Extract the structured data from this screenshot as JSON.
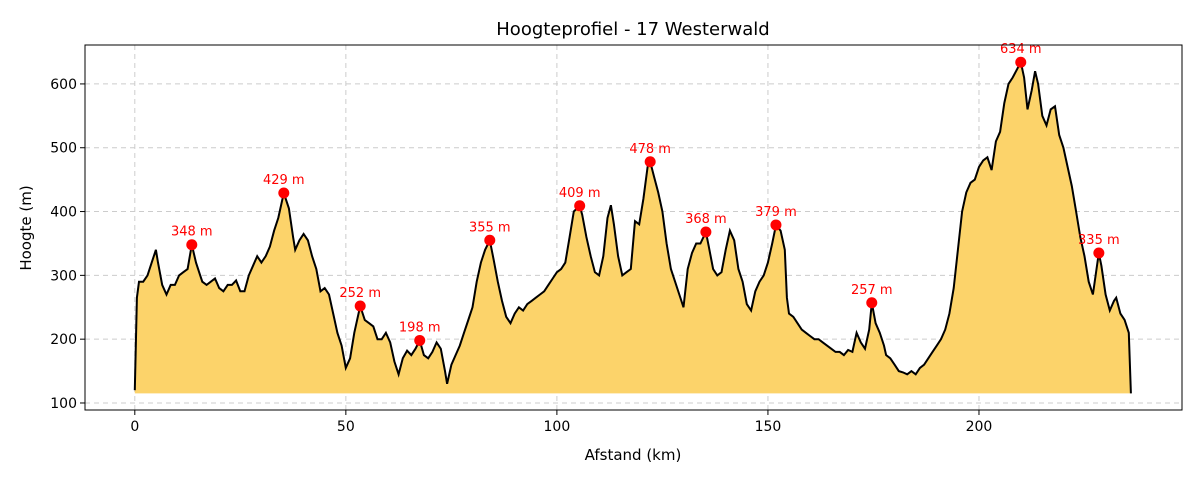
{
  "chart_data": {
    "type": "area",
    "title": "Hoogteprofiel - 17 Westerwald",
    "xlabel": "Afstand (km)",
    "ylabel": "Hoogte (m)",
    "xlim": [
      -11.8,
      248.1
    ],
    "ylim": [
      89,
      661
    ],
    "fill_base": 115,
    "xticks": [
      0,
      50,
      100,
      150,
      200
    ],
    "yticks": [
      100,
      200,
      300,
      400,
      500,
      600
    ],
    "grid": true,
    "colors": {
      "line": "#000000",
      "fill": "#fcd36a",
      "peaks": "#ff0000"
    },
    "profile": [
      [
        0,
        120
      ],
      [
        0.5,
        265
      ],
      [
        1,
        290
      ],
      [
        2,
        290
      ],
      [
        3,
        300
      ],
      [
        4,
        320
      ],
      [
        5,
        340
      ],
      [
        5.5,
        320
      ],
      [
        6.5,
        285
      ],
      [
        7.5,
        270
      ],
      [
        8.5,
        285
      ],
      [
        9.5,
        285
      ],
      [
        10.5,
        300
      ],
      [
        11.5,
        305
      ],
      [
        12.5,
        310
      ],
      [
        13.5,
        348
      ],
      [
        14.5,
        320
      ],
      [
        15.5,
        300
      ],
      [
        16,
        290
      ],
      [
        17,
        285
      ],
      [
        18,
        290
      ],
      [
        19,
        295
      ],
      [
        20,
        280
      ],
      [
        21,
        275
      ],
      [
        22,
        285
      ],
      [
        23,
        285
      ],
      [
        24,
        292
      ],
      [
        25,
        275
      ],
      [
        26,
        275
      ],
      [
        27,
        300
      ],
      [
        28,
        315
      ],
      [
        29,
        330
      ],
      [
        30,
        320
      ],
      [
        31,
        330
      ],
      [
        32,
        345
      ],
      [
        33,
        370
      ],
      [
        34,
        390
      ],
      [
        35.3,
        429
      ],
      [
        36.5,
        405
      ],
      [
        37.5,
        360
      ],
      [
        38,
        340
      ],
      [
        39,
        355
      ],
      [
        40,
        365
      ],
      [
        41,
        355
      ],
      [
        42,
        330
      ],
      [
        43,
        310
      ],
      [
        44,
        275
      ],
      [
        45,
        280
      ],
      [
        46,
        270
      ],
      [
        47,
        240
      ],
      [
        48,
        210
      ],
      [
        49,
        190
      ],
      [
        50,
        155
      ],
      [
        51,
        170
      ],
      [
        52,
        210
      ],
      [
        53.4,
        252
      ],
      [
        54.5,
        230
      ],
      [
        55.5,
        225
      ],
      [
        56.5,
        220
      ],
      [
        57.5,
        200
      ],
      [
        58.5,
        200
      ],
      [
        59.5,
        210
      ],
      [
        60.5,
        195
      ],
      [
        61.5,
        165
      ],
      [
        62.5,
        145
      ],
      [
        63.5,
        170
      ],
      [
        64.5,
        182
      ],
      [
        65.5,
        175
      ],
      [
        66.5,
        185
      ],
      [
        67.5,
        198
      ],
      [
        68.5,
        175
      ],
      [
        69.5,
        170
      ],
      [
        70.5,
        180
      ],
      [
        71.5,
        195
      ],
      [
        72.5,
        185
      ],
      [
        73.5,
        150
      ],
      [
        74,
        130
      ],
      [
        75,
        160
      ],
      [
        76,
        175
      ],
      [
        77,
        190
      ],
      [
        78,
        210
      ],
      [
        79,
        230
      ],
      [
        80,
        250
      ],
      [
        81,
        290
      ],
      [
        82,
        320
      ],
      [
        83,
        340
      ],
      [
        84.1,
        355
      ],
      [
        85,
        325
      ],
      [
        86,
        290
      ],
      [
        87,
        260
      ],
      [
        88,
        235
      ],
      [
        89,
        225
      ],
      [
        90,
        240
      ],
      [
        91,
        250
      ],
      [
        92,
        245
      ],
      [
        93,
        255
      ],
      [
        94,
        260
      ],
      [
        95,
        265
      ],
      [
        96,
        270
      ],
      [
        97,
        275
      ],
      [
        98,
        285
      ],
      [
        99,
        295
      ],
      [
        100,
        305
      ],
      [
        101,
        310
      ],
      [
        102,
        320
      ],
      [
        103,
        360
      ],
      [
        104,
        400
      ],
      [
        105.4,
        409
      ],
      [
        106,
        395
      ],
      [
        107,
        360
      ],
      [
        108,
        330
      ],
      [
        109,
        305
      ],
      [
        110,
        300
      ],
      [
        111,
        330
      ],
      [
        112,
        390
      ],
      [
        112.8,
        410
      ],
      [
        113.5,
        380
      ],
      [
        114.5,
        330
      ],
      [
        115.5,
        300
      ],
      [
        116.5,
        305
      ],
      [
        117.5,
        310
      ],
      [
        118.5,
        385
      ],
      [
        119.5,
        380
      ],
      [
        120.5,
        420
      ],
      [
        121.5,
        470
      ],
      [
        122.1,
        478
      ],
      [
        123,
        455
      ],
      [
        124,
        430
      ],
      [
        125,
        400
      ],
      [
        126,
        350
      ],
      [
        127,
        310
      ],
      [
        128,
        290
      ],
      [
        129,
        270
      ],
      [
        130,
        250
      ],
      [
        131,
        310
      ],
      [
        132,
        335
      ],
      [
        133,
        350
      ],
      [
        134,
        350
      ],
      [
        135.3,
        368
      ],
      [
        136,
        345
      ],
      [
        137,
        310
      ],
      [
        138,
        300
      ],
      [
        139,
        305
      ],
      [
        140,
        340
      ],
      [
        141,
        370
      ],
      [
        142,
        355
      ],
      [
        143,
        310
      ],
      [
        144,
        290
      ],
      [
        145,
        255
      ],
      [
        146,
        245
      ],
      [
        147,
        275
      ],
      [
        148,
        290
      ],
      [
        149,
        300
      ],
      [
        150,
        320
      ],
      [
        151,
        350
      ],
      [
        151.9,
        379
      ],
      [
        153,
        370
      ],
      [
        154,
        340
      ],
      [
        154.5,
        265
      ],
      [
        155,
        240
      ],
      [
        156,
        235
      ],
      [
        157,
        225
      ],
      [
        158,
        215
      ],
      [
        159,
        210
      ],
      [
        160,
        205
      ],
      [
        161,
        200
      ],
      [
        162,
        200
      ],
      [
        163,
        195
      ],
      [
        164,
        190
      ],
      [
        165,
        185
      ],
      [
        166,
        180
      ],
      [
        167,
        180
      ],
      [
        168,
        175
      ],
      [
        169,
        183
      ],
      [
        170,
        180
      ],
      [
        171,
        210
      ],
      [
        172,
        195
      ],
      [
        173,
        185
      ],
      [
        174,
        215
      ],
      [
        174.6,
        257
      ],
      [
        175.5,
        225
      ],
      [
        176.5,
        210
      ],
      [
        177.5,
        190
      ],
      [
        178,
        175
      ],
      [
        179,
        170
      ],
      [
        180,
        160
      ],
      [
        181,
        150
      ],
      [
        182,
        148
      ],
      [
        183,
        145
      ],
      [
        184,
        150
      ],
      [
        185,
        145
      ],
      [
        186,
        155
      ],
      [
        187,
        160
      ],
      [
        188,
        170
      ],
      [
        189,
        180
      ],
      [
        190,
        190
      ],
      [
        191,
        200
      ],
      [
        192,
        215
      ],
      [
        193,
        240
      ],
      [
        194,
        280
      ],
      [
        195,
        340
      ],
      [
        196,
        400
      ],
      [
        197,
        430
      ],
      [
        198,
        445
      ],
      [
        199,
        450
      ],
      [
        200,
        470
      ],
      [
        201,
        480
      ],
      [
        202,
        485
      ],
      [
        203,
        465
      ],
      [
        204,
        510
      ],
      [
        205,
        525
      ],
      [
        206,
        570
      ],
      [
        207,
        600
      ],
      [
        208,
        610
      ],
      [
        209.9,
        634
      ],
      [
        210.7,
        610
      ],
      [
        211.5,
        560
      ],
      [
        212.5,
        590
      ],
      [
        213.3,
        620
      ],
      [
        214,
        600
      ],
      [
        215,
        550
      ],
      [
        216,
        535
      ],
      [
        217,
        560
      ],
      [
        218,
        565
      ],
      [
        219,
        520
      ],
      [
        220,
        500
      ],
      [
        221,
        470
      ],
      [
        222,
        440
      ],
      [
        223,
        400
      ],
      [
        224,
        360
      ],
      [
        225,
        330
      ],
      [
        226,
        290
      ],
      [
        227,
        270
      ],
      [
        228.4,
        335
      ],
      [
        229,
        315
      ],
      [
        230,
        270
      ],
      [
        231,
        245
      ],
      [
        232,
        260
      ],
      [
        232.5,
        265
      ],
      [
        233.5,
        240
      ],
      [
        234.5,
        230
      ],
      [
        235.5,
        210
      ],
      [
        236,
        115
      ]
    ],
    "peaks": [
      {
        "x": 13.5,
        "y": 348,
        "label": "348 m"
      },
      {
        "x": 35.3,
        "y": 429,
        "label": "429 m"
      },
      {
        "x": 53.4,
        "y": 252,
        "label": "252 m"
      },
      {
        "x": 67.5,
        "y": 198,
        "label": "198 m"
      },
      {
        "x": 84.1,
        "y": 355,
        "label": "355 m"
      },
      {
        "x": 105.4,
        "y": 409,
        "label": "409 m"
      },
      {
        "x": 122.1,
        "y": 478,
        "label": "478 m"
      },
      {
        "x": 135.3,
        "y": 368,
        "label": "368 m"
      },
      {
        "x": 151.9,
        "y": 379,
        "label": "379 m"
      },
      {
        "x": 174.6,
        "y": 257,
        "label": "257 m"
      },
      {
        "x": 209.9,
        "y": 634,
        "label": "634 m"
      },
      {
        "x": 228.4,
        "y": 335,
        "label": "335 m"
      }
    ]
  }
}
